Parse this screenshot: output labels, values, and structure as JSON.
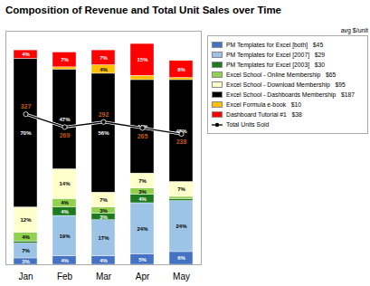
{
  "chart_data": {
    "type": "bar",
    "title": "Composition of Revenue and Total Unit Sales over Time",
    "categories": [
      "Jan",
      "Feb",
      "Mar",
      "Apr",
      "May"
    ],
    "stacked": true,
    "data_labels": true,
    "tick_labels": "x",
    "legend": "right",
    "legend_title": "avg $/unit",
    "ylim": [
      0,
      110
    ],
    "y2lim": [
      -350,
      700
    ],
    "series": [
      {
        "name": "PM Templates for Excel [both]   $45",
        "color": "#4472C4",
        "values": [
          3,
          4,
          4,
          5,
          6
        ],
        "value_labels": [
          "3%",
          "4%",
          "4%",
          "5%",
          "6%"
        ]
      },
      {
        "name": "PM Templates for Excel [2007]   $29",
        "color": "#9DC3E6",
        "values": [
          7,
          19,
          17,
          24,
          24
        ],
        "value_labels": [
          "7%",
          "19%",
          "17%",
          "24%",
          "24%"
        ]
      },
      {
        "name": "PM Templates for Excel [2003]   $30",
        "color": "#1F7A1F",
        "values": [
          1,
          4,
          3,
          4,
          1
        ],
        "value_labels": [
          null,
          "4%",
          "3%",
          "4%",
          null
        ]
      },
      {
        "name": "Excel School - Online Membership   $65",
        "color": "#92D050",
        "values": [
          4,
          4,
          3,
          3,
          1
        ],
        "value_labels": [
          "4%",
          "4%",
          "3%",
          "3%",
          null
        ]
      },
      {
        "name": "Excel School - Download Membership   $95",
        "color": "#FFFFCC",
        "values": [
          12,
          14,
          7,
          7,
          7
        ],
        "value_labels": [
          "12%",
          "14%",
          "7%",
          "7%",
          "7%"
        ]
      },
      {
        "name": "Excel School - Dashboards Membership   $187",
        "color": "#000000",
        "values": [
          70,
          47,
          56,
          44,
          48
        ],
        "value_labels": [
          "70%",
          "47%",
          "56%",
          "44%",
          "48%"
        ]
      },
      {
        "name": "Excel Formula e-book   $10",
        "color": "#FFC000",
        "values": [
          0,
          1,
          4,
          2,
          1
        ],
        "value_labels": [
          null,
          null,
          "4%",
          null,
          null
        ]
      },
      {
        "name": "Dashboard Tutorial #1   $38",
        "color": "#FF0000",
        "values": [
          4,
          7,
          7,
          15,
          8
        ],
        "value_labels": [
          "4%",
          "7%",
          "7%",
          "15%",
          "8%"
        ]
      },
      {
        "name": "Total Units Sold",
        "type": "line",
        "axis": "y2",
        "color": "#000000",
        "marker": "circle",
        "values": [
          327,
          269,
          292,
          265,
          238
        ]
      }
    ]
  }
}
